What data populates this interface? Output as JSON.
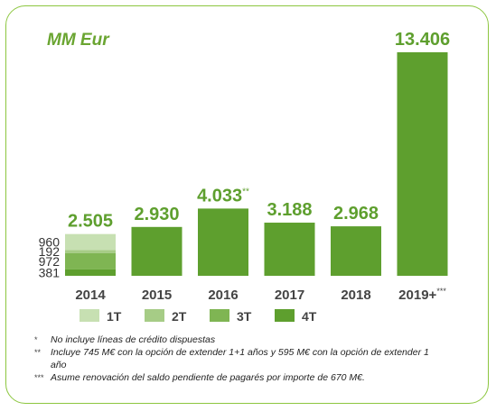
{
  "unit_label": "MM Eur",
  "colors": {
    "frame": "#8cc63f",
    "bar": "#5e9f2e",
    "label": "#5e9f2e",
    "q1": "#c7e0b2",
    "q2": "#a6cc86",
    "q3": "#7fb553",
    "q4": "#5e9f2e"
  },
  "chart_data": {
    "type": "bar",
    "title": "",
    "categories": [
      "2014",
      "2015",
      "2016",
      "2017",
      "2018",
      "2019+"
    ],
    "category_suffixes": [
      "",
      "",
      "",
      "",
      "",
      "***"
    ],
    "values": [
      2505,
      2930,
      4033,
      3188,
      2968,
      13406
    ],
    "value_labels": [
      "2.505",
      "2.930",
      "4.033",
      "3.188",
      "2.968",
      "13.406"
    ],
    "value_suffixes": [
      "",
      "",
      "**",
      "",
      "",
      ""
    ],
    "stacked_2014": {
      "segments": [
        {
          "name": "1T",
          "value": 960
        },
        {
          "name": "2T",
          "value": 192
        },
        {
          "name": "3T",
          "value": 972
        },
        {
          "name": "4T",
          "value": 381
        }
      ]
    },
    "legend": [
      "1T",
      "2T",
      "3T",
      "4T"
    ],
    "legend_position": "bottom",
    "ylim": [
      0,
      14000
    ],
    "grid": false
  },
  "footnotes": [
    {
      "mark": "*",
      "text": "No incluye líneas de crédito dispuestas"
    },
    {
      "mark": "**",
      "text": "Incluye 745 M€ con la opción de extender 1+1 años y 595 M€ con la opción de extender 1 año"
    },
    {
      "mark": "***",
      "text": "Asume renovación del saldo pendiente de pagarés por importe de 670 M€."
    }
  ]
}
